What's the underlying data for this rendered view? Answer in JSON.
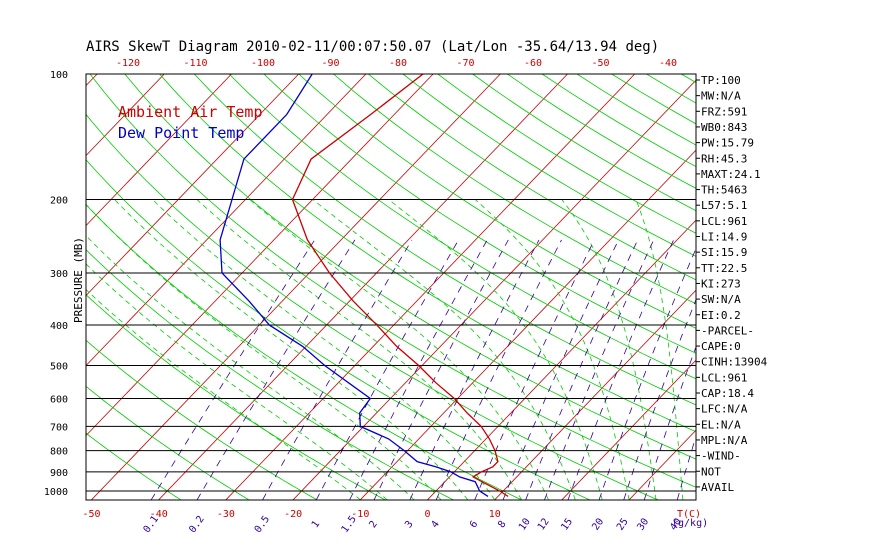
{
  "title": "AIRS SkewT Diagram 2010-02-11/00:07:50.07 (Lat/Lon -35.64/13.94 deg)",
  "colors": {
    "temp": "#cc0000",
    "dewpoint": "#0000cc",
    "isotherm": "#cc0000",
    "dry_adiabat": "#00cc00",
    "moist_adiabat": "#00cc00",
    "mixing_ratio": "#330099",
    "isobar": "#000000",
    "top_axis": "#cc0000",
    "bottom_axis": "#cc0000",
    "mixing_axis": "#330099"
  },
  "chart_data": {
    "type": "line",
    "title": "AIRS SkewT Diagram 2010-02-11/00:07:50.07 (Lat/Lon -35.64/13.94 deg)",
    "ylabel": "PRESSURE (MB)",
    "xlabel": "T(C)",
    "y_scale": "log",
    "ylim": [
      1050,
      100
    ],
    "pressure_ticks": [
      100,
      200,
      300,
      400,
      500,
      600,
      700,
      800,
      900,
      1000
    ],
    "bottom_temp_ticks": [
      -50,
      -40,
      -30,
      -20,
      -10,
      0,
      10
    ],
    "top_temp_ticks": [
      -120,
      -110,
      -100,
      -90,
      -80,
      -70,
      -60,
      -50,
      -40
    ],
    "mixing_ratio_ticks": [
      "0.1",
      "0.2",
      "0.5",
      "1",
      "1.5",
      "2",
      "3",
      "4",
      "6",
      "8",
      "10",
      "12",
      "15",
      "20",
      "25",
      "30",
      "40"
    ],
    "mixing_ratio_unit": "(g/kg)",
    "series": [
      {
        "name": "Ambient Air Temp",
        "pressure": [
          100,
          125,
          160,
          200,
          250,
          300,
          350,
          400,
          450,
          500,
          550,
          600,
          650,
          700,
          750,
          800,
          850,
          875,
          900,
          925,
          950,
          1000,
          1030
        ],
        "temperature": [
          -61.5,
          -63.5,
          -66,
          -63,
          -55,
          -47,
          -39.5,
          -32.5,
          -26.5,
          -20.5,
          -15.5,
          -10.5,
          -6.5,
          -2.5,
          0.5,
          3,
          5,
          5,
          4,
          3.5,
          5.5,
          9.5,
          11.5
        ]
      },
      {
        "name": "Dew Point Temp",
        "pressure": [
          100,
          125,
          160,
          200,
          250,
          300,
          350,
          400,
          450,
          500,
          550,
          600,
          650,
          700,
          750,
          800,
          850,
          875,
          900,
          925,
          950,
          1000,
          1030
        ],
        "temperature": [
          -78,
          -76,
          -76,
          -72,
          -68,
          -63,
          -55,
          -48.5,
          -40.5,
          -34.5,
          -28.5,
          -23,
          -22.5,
          -20.5,
          -14.5,
          -10.5,
          -7,
          -3.5,
          -0.5,
          1.5,
          4.5,
          6.5,
          8.5
        ]
      }
    ],
    "legend": [
      "Ambient Air Temp",
      "Dew Point Temp"
    ],
    "legend_position": "top-left",
    "grid": true
  },
  "indices": [
    "TP:100",
    "MW:N/A",
    "FRZ:591",
    "WB0:843",
    "PW:15.79",
    "RH:45.3",
    "MAXT:24.1",
    "TH:5463",
    "L57:5.1",
    "LCL:961",
    "LI:14.9",
    "SI:15.9",
    "TT:22.5",
    "KI:273",
    "SW:N/A",
    "EI:0.2",
    "-PARCEL-",
    "CAPE:0",
    "CINH:13904",
    "LCL:961",
    "CAP:18.4",
    "LFC:N/A",
    "EL:N/A",
    "MPL:N/A",
    "-WIND-",
    "NOT",
    "AVAIL"
  ]
}
